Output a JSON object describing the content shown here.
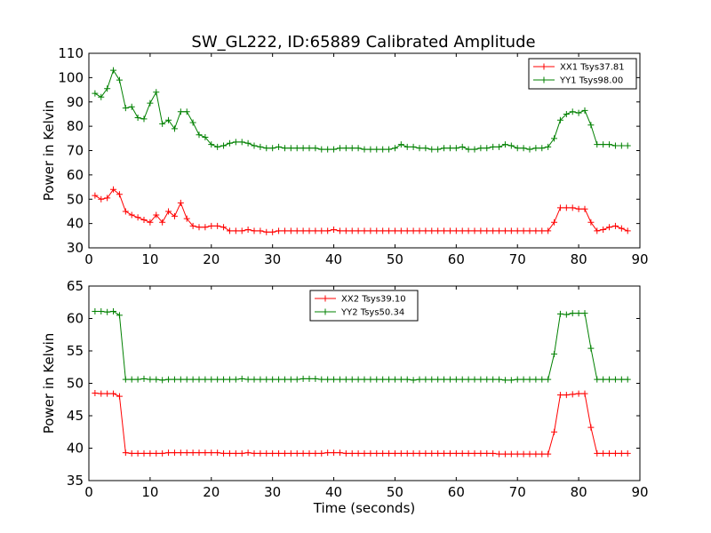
{
  "figure_title": "SW_GL222, ID:65889 Calibrated Amplitude",
  "colors": {
    "red": "#ff0000",
    "green": "#008000"
  },
  "chart_data": [
    {
      "type": "line",
      "title": "SW_GL222, ID:65889 Calibrated Amplitude",
      "xlabel": "",
      "ylabel": "Power in Kelvin",
      "xlim": [
        0,
        90
      ],
      "ylim": [
        30,
        110
      ],
      "xticks": [
        0,
        10,
        20,
        30,
        40,
        50,
        60,
        70,
        80,
        90
      ],
      "yticks": [
        30,
        40,
        50,
        60,
        70,
        80,
        90,
        100,
        110
      ],
      "grid": false,
      "legend_position": "upper right",
      "x": [
        1,
        2,
        3,
        4,
        5,
        6,
        7,
        8,
        9,
        10,
        11,
        12,
        13,
        14,
        15,
        16,
        17,
        18,
        19,
        20,
        21,
        22,
        23,
        24,
        25,
        26,
        27,
        28,
        29,
        30,
        31,
        32,
        33,
        34,
        35,
        36,
        37,
        38,
        39,
        40,
        41,
        42,
        43,
        44,
        45,
        46,
        47,
        48,
        49,
        50,
        51,
        52,
        53,
        54,
        55,
        56,
        57,
        58,
        59,
        60,
        61,
        62,
        63,
        64,
        65,
        66,
        67,
        68,
        69,
        70,
        71,
        72,
        73,
        74,
        75,
        76,
        77,
        78,
        79,
        80,
        81,
        82,
        83,
        84,
        85,
        86,
        87,
        88
      ],
      "series": [
        {
          "name": "XX1 Tsys37.81",
          "color": "#ff0000",
          "values": [
            51.5,
            50,
            50.5,
            54,
            52,
            45,
            43.5,
            42.5,
            41.5,
            40.5,
            43.5,
            40.5,
            45,
            43,
            48.5,
            42,
            39,
            38.5,
            38.5,
            39,
            39,
            38.5,
            37,
            37,
            37,
            37.5,
            37,
            37,
            36.5,
            36.5,
            37,
            37,
            37,
            37,
            37,
            37,
            37,
            37,
            37,
            37.5,
            37,
            37,
            37,
            37,
            37,
            37,
            37,
            37,
            37,
            37,
            37,
            37,
            37,
            37,
            37,
            37,
            37,
            37,
            37,
            37,
            37,
            37,
            37,
            37,
            37,
            37,
            37,
            37,
            37,
            37,
            37,
            37,
            37,
            37,
            37,
            40.5,
            46.5,
            46.5,
            46.5,
            46,
            46,
            40.5,
            37,
            37.5,
            38.5,
            39,
            38,
            37
          ]
        },
        {
          "name": "YY1 Tsys98.00",
          "color": "#008000",
          "values": [
            93.5,
            92,
            95.5,
            103,
            99,
            87.5,
            88,
            83.5,
            83,
            89.5,
            94,
            81,
            82.5,
            79,
            86,
            86,
            81.5,
            76.5,
            75.5,
            72.5,
            71.5,
            72,
            73,
            73.5,
            73.5,
            73,
            72,
            71.5,
            71,
            71,
            71.5,
            71,
            71,
            71,
            71,
            71,
            71,
            70.5,
            70.5,
            70.5,
            71,
            71,
            71,
            71,
            70.5,
            70.5,
            70.5,
            70.5,
            70.5,
            71,
            72.5,
            71.5,
            71.5,
            71,
            71,
            70.5,
            70.5,
            71,
            71,
            71,
            71.5,
            70.5,
            70.5,
            71,
            71,
            71.5,
            71.5,
            72.5,
            72,
            71,
            71,
            70.5,
            71,
            71,
            71.5,
            75,
            82.5,
            85,
            86,
            85.5,
            86.5,
            80.5,
            72.5,
            72.5,
            72.5,
            72,
            72,
            72
          ]
        }
      ]
    },
    {
      "type": "line",
      "title": "",
      "xlabel": "Time (seconds)",
      "ylabel": "Power in Kelvin",
      "xlim": [
        0,
        90
      ],
      "ylim": [
        35,
        65
      ],
      "xticks": [
        0,
        10,
        20,
        30,
        40,
        50,
        60,
        70,
        80,
        90
      ],
      "yticks": [
        35,
        40,
        45,
        50,
        55,
        60,
        65
      ],
      "grid": false,
      "legend_position": "upper center",
      "x": [
        1,
        2,
        3,
        4,
        5,
        6,
        7,
        8,
        9,
        10,
        11,
        12,
        13,
        14,
        15,
        16,
        17,
        18,
        19,
        20,
        21,
        22,
        23,
        24,
        25,
        26,
        27,
        28,
        29,
        30,
        31,
        32,
        33,
        34,
        35,
        36,
        37,
        38,
        39,
        40,
        41,
        42,
        43,
        44,
        45,
        46,
        47,
        48,
        49,
        50,
        51,
        52,
        53,
        54,
        55,
        56,
        57,
        58,
        59,
        60,
        61,
        62,
        63,
        64,
        65,
        66,
        67,
        68,
        69,
        70,
        71,
        72,
        73,
        74,
        75,
        76,
        77,
        78,
        79,
        80,
        81,
        82,
        83,
        84,
        85,
        86,
        87,
        88
      ],
      "series": [
        {
          "name": "XX2 Tsys39.10",
          "color": "#ff0000",
          "values": [
            48.5,
            48.4,
            48.4,
            48.4,
            48.0,
            39.3,
            39.2,
            39.2,
            39.2,
            39.2,
            39.2,
            39.2,
            39.3,
            39.3,
            39.3,
            39.3,
            39.3,
            39.3,
            39.3,
            39.3,
            39.3,
            39.2,
            39.2,
            39.2,
            39.2,
            39.3,
            39.2,
            39.2,
            39.2,
            39.2,
            39.2,
            39.2,
            39.2,
            39.2,
            39.2,
            39.2,
            39.2,
            39.2,
            39.3,
            39.3,
            39.3,
            39.2,
            39.2,
            39.2,
            39.2,
            39.2,
            39.2,
            39.2,
            39.2,
            39.2,
            39.2,
            39.2,
            39.2,
            39.2,
            39.2,
            39.2,
            39.2,
            39.2,
            39.2,
            39.2,
            39.2,
            39.2,
            39.2,
            39.2,
            39.2,
            39.2,
            39.1,
            39.1,
            39.1,
            39.1,
            39.1,
            39.1,
            39.1,
            39.1,
            39.1,
            42.5,
            48.2,
            48.2,
            48.3,
            48.4,
            48.4,
            43.2,
            39.2,
            39.2,
            39.2,
            39.2,
            39.2,
            39.2
          ]
        },
        {
          "name": "YY2 Tsys50.34",
          "color": "#008000",
          "values": [
            61.1,
            61.1,
            61.0,
            61.1,
            60.5,
            50.6,
            50.6,
            50.6,
            50.7,
            50.6,
            50.6,
            50.5,
            50.6,
            50.6,
            50.6,
            50.6,
            50.6,
            50.6,
            50.6,
            50.6,
            50.6,
            50.6,
            50.6,
            50.6,
            50.7,
            50.6,
            50.6,
            50.6,
            50.6,
            50.6,
            50.6,
            50.6,
            50.6,
            50.6,
            50.7,
            50.7,
            50.7,
            50.6,
            50.6,
            50.6,
            50.6,
            50.6,
            50.6,
            50.6,
            50.6,
            50.6,
            50.6,
            50.6,
            50.6,
            50.6,
            50.6,
            50.6,
            50.5,
            50.6,
            50.6,
            50.6,
            50.6,
            50.6,
            50.6,
            50.6,
            50.6,
            50.6,
            50.6,
            50.6,
            50.6,
            50.6,
            50.6,
            50.5,
            50.5,
            50.6,
            50.6,
            50.6,
            50.6,
            50.6,
            50.6,
            54.5,
            60.7,
            60.6,
            60.8,
            60.8,
            60.8,
            55.4,
            50.6,
            50.6,
            50.6,
            50.6,
            50.6,
            50.6
          ]
        }
      ]
    }
  ]
}
